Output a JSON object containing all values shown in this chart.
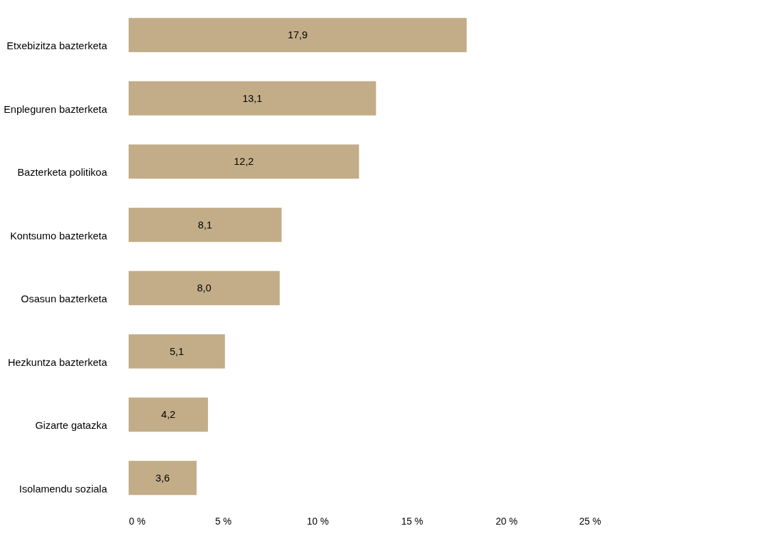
{
  "chart_data": {
    "type": "bar",
    "orientation": "horizontal",
    "categories": [
      "Etxebizitza bazterketa",
      "Enpleguren bazterketa",
      "Bazterketa politikoa",
      "Kontsumo bazterketa",
      "Osasun bazterketa",
      "Hezkuntza bazterketa",
      "Gizarte gatazka",
      "Isolamendu soziala"
    ],
    "values": [
      17.9,
      13.1,
      12.2,
      8.1,
      8.0,
      5.1,
      4.2,
      3.6
    ],
    "value_labels": [
      "17,9",
      "13,1",
      "12,2",
      "8,1",
      "8,0",
      "5,1",
      "4,2",
      "3,6"
    ],
    "color": "#c2ad88",
    "xlim": [
      0,
      25
    ],
    "xticks": [
      {
        "value": 0,
        "label": "0 %"
      },
      {
        "value": 5,
        "label": "5 %"
      },
      {
        "value": 10,
        "label": "10 %"
      },
      {
        "value": 15,
        "label": "15 %"
      },
      {
        "value": 20,
        "label": "20 %"
      },
      {
        "value": 25,
        "label": "25 %"
      }
    ],
    "grid": false
  }
}
